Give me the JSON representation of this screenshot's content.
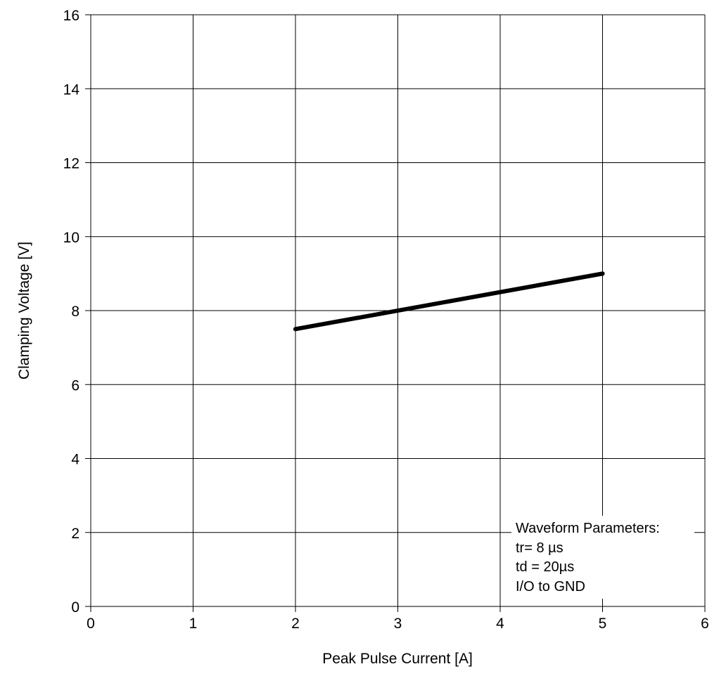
{
  "chart_data": {
    "type": "line",
    "title": "",
    "xlabel": "Peak Pulse Current [A]",
    "ylabel": "Clamping Voltage [V]",
    "xlim": [
      0,
      6
    ],
    "ylim": [
      0,
      16
    ],
    "x_ticks": [
      "0",
      "1",
      "2",
      "3",
      "4",
      "5",
      "6"
    ],
    "y_ticks": [
      "0",
      "2",
      "4",
      "6",
      "8",
      "10",
      "12",
      "14",
      "16"
    ],
    "grid": true,
    "series": [
      {
        "x": [
          2,
          5
        ],
        "y": [
          7.5,
          9.0
        ],
        "color": "#000000"
      }
    ],
    "annotation": {
      "lines": [
        "Waveform Parameters:",
        "tr= 8 µs",
        "td = 20µs",
        "I/O to GND"
      ]
    }
  }
}
